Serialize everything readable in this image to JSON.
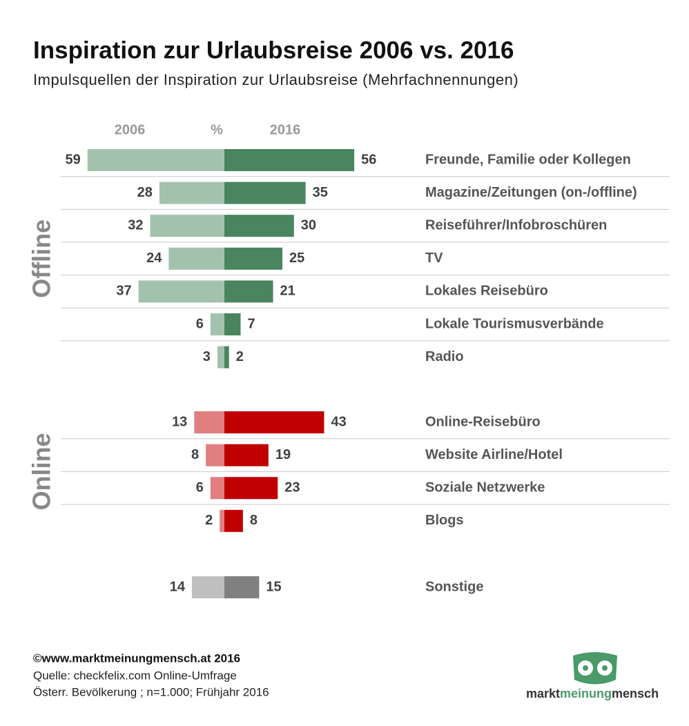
{
  "chart_data": {
    "type": "butterfly",
    "title": "Inspiration zur Urlaubsreise 2006 vs. 2016",
    "subtitle": "Impulsquellen der Inspiration zur Urlaubsreise (Mehrfachnennungen)",
    "series_names": [
      "2006",
      "2016"
    ],
    "unit_label": "%",
    "groups": [
      {
        "name": "Offline",
        "categories": [
          "Freunde, Familie oder Kollegen",
          "Magazine/Zeitungen (on-/offline)",
          "Reiseführer/Infobroschüren",
          "TV",
          "Lokales Reisebüro",
          "Lokale Tourismusverbände",
          "Radio"
        ],
        "series": [
          {
            "color": "#a3c2ad",
            "values": [
              59,
              28,
              32,
              24,
              37,
              6,
              3
            ]
          },
          {
            "color": "#4a8560",
            "values": [
              56,
              35,
              30,
              25,
              21,
              7,
              2
            ]
          }
        ]
      },
      {
        "name": "Online",
        "categories": [
          "Online-Reisebüro",
          "Website Airline/Hotel",
          "Soziale Netzwerke",
          "Blogs"
        ],
        "series": [
          {
            "color": "#e07e80",
            "values": [
              13,
              8,
              6,
              2
            ]
          },
          {
            "color": "#c00000",
            "values": [
              43,
              19,
              23,
              8
            ]
          }
        ]
      },
      {
        "categories": [
          "Sonstige"
        ],
        "series": [
          {
            "color": "#bfbfbf",
            "values": [
              14
            ]
          },
          {
            "color": "#808080",
            "values": [
              15
            ]
          }
        ]
      }
    ]
  },
  "footer": {
    "copyright": "©www.marktmeinungmensch.at 2016",
    "source": "Quelle: checkfelix.com Online-Umfrage",
    "note": "Österr. Bevölkerung ; n=1.000; Frühjahr 2016"
  },
  "logo": [
    "markt",
    "meinung",
    "mensch"
  ]
}
